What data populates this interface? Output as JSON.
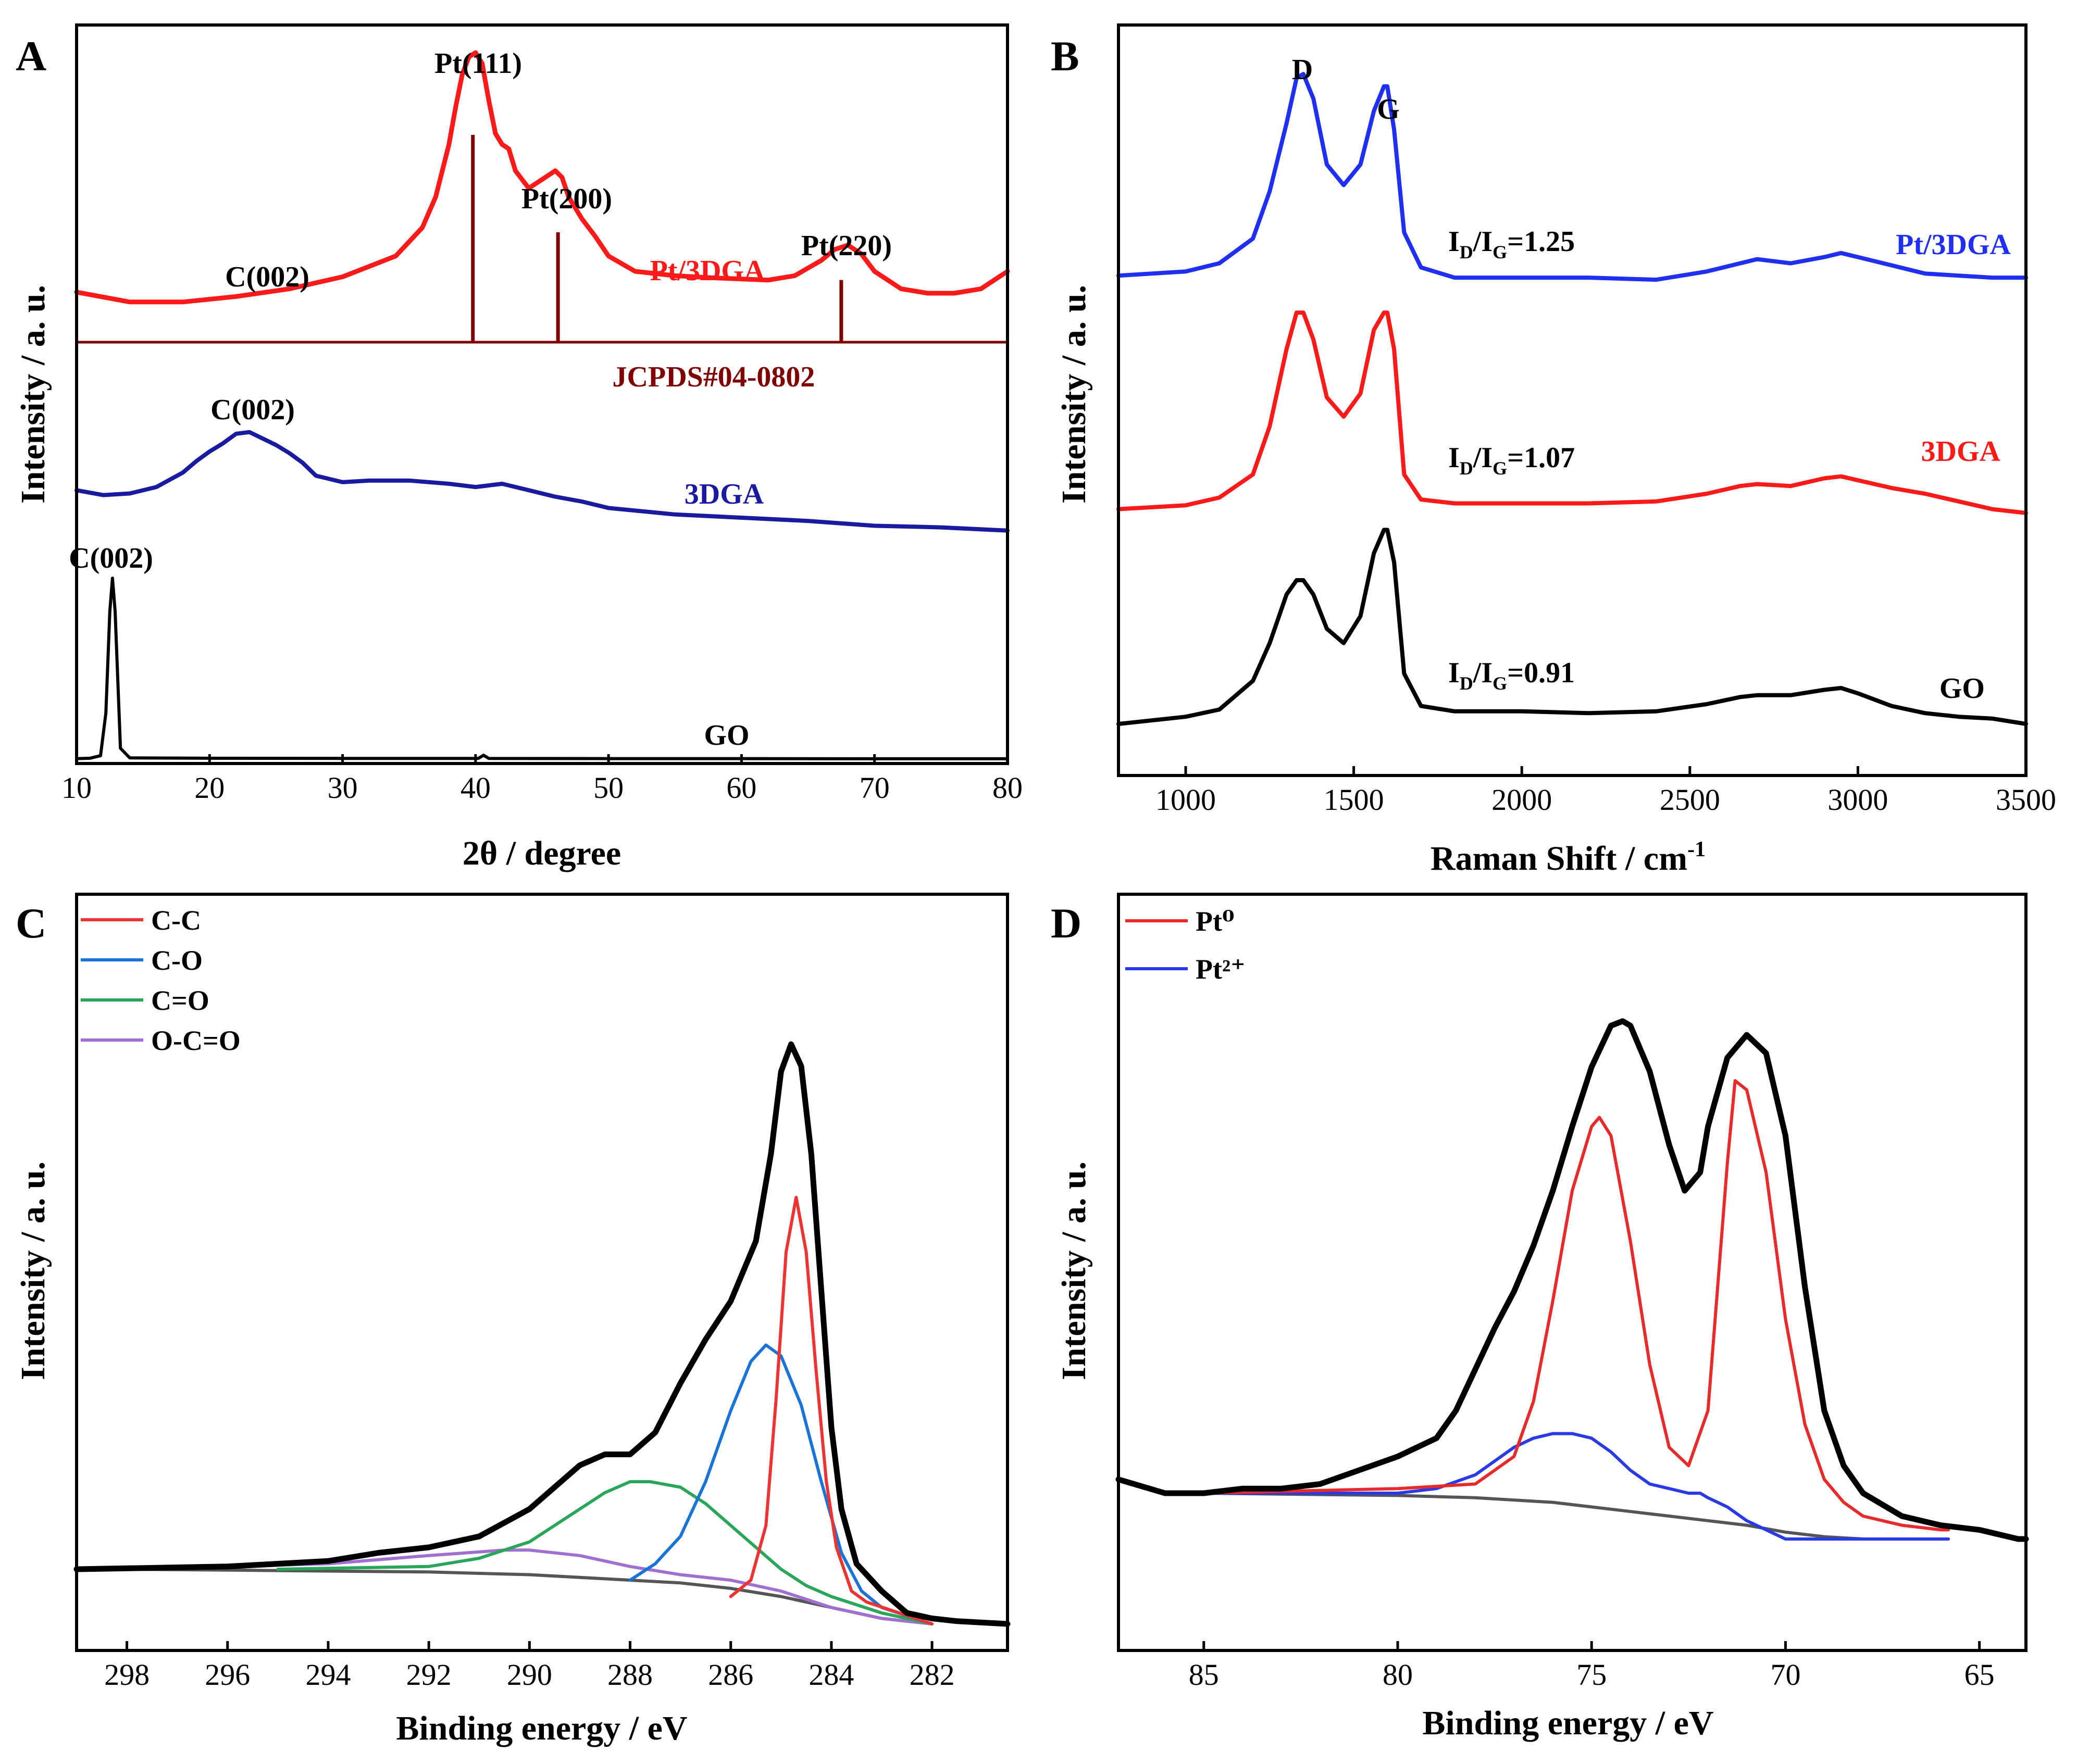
{
  "chart_data": [
    {
      "panel": "A",
      "type": "line",
      "xlabel": "2θ / degree",
      "ylabel": "Intensity / a. u.",
      "xlim": [
        10,
        80
      ],
      "xticks": [
        10,
        20,
        30,
        40,
        50,
        60,
        70,
        80
      ],
      "series": [
        {
          "name": "Pt/3DGA",
          "color": "#ff1a1a",
          "x": [
            10,
            14,
            18,
            22,
            26,
            30,
            34,
            36,
            37,
            38,
            38.5,
            39,
            39.5,
            40,
            40.5,
            41,
            41.5,
            42,
            42.5,
            43,
            44,
            45,
            46,
            46.5,
            47,
            48,
            49,
            50,
            52,
            55,
            58,
            62,
            64,
            66,
            67,
            68,
            69,
            70,
            72,
            74,
            76,
            78,
            80
          ],
          "y": [
            0.105,
            0.06,
            0.06,
            0.085,
            0.12,
            0.175,
            0.27,
            0.4,
            0.54,
            0.78,
            0.95,
            1.1,
            1.18,
            1.2,
            1.15,
            0.98,
            0.83,
            0.78,
            0.76,
            0.66,
            0.58,
            0.62,
            0.66,
            0.63,
            0.54,
            0.44,
            0.36,
            0.27,
            0.2,
            0.18,
            0.17,
            0.16,
            0.18,
            0.25,
            0.3,
            0.32,
            0.28,
            0.2,
            0.12,
            0.1,
            0.1,
            0.12,
            0.2
          ]
        },
        {
          "name": "3DGA",
          "color": "#1a1aa0",
          "x": [
            10,
            12,
            14,
            16,
            18,
            19,
            20,
            21,
            22,
            23,
            24,
            25,
            26,
            27,
            28,
            30,
            32,
            35,
            38,
            40,
            42,
            44,
            46,
            48,
            50,
            55,
            60,
            65,
            70,
            75,
            80
          ],
          "y": [
            0.27,
            0.24,
            0.25,
            0.29,
            0.38,
            0.45,
            0.51,
            0.56,
            0.62,
            0.63,
            0.59,
            0.55,
            0.5,
            0.44,
            0.36,
            0.32,
            0.33,
            0.33,
            0.31,
            0.29,
            0.31,
            0.27,
            0.23,
            0.2,
            0.16,
            0.12,
            0.1,
            0.08,
            0.05,
            0.04,
            0.02
          ]
        },
        {
          "name": "GO",
          "color": "#000000",
          "x": [
            10,
            11,
            11.8,
            12.2,
            12.5,
            12.7,
            12.9,
            13.3,
            14,
            20,
            30,
            40.2,
            40.6,
            41.0,
            50,
            60,
            70,
            80
          ],
          "y": [
            0.004,
            0.006,
            0.02,
            0.25,
            0.8,
            0.98,
            0.8,
            0.06,
            0.008,
            0.006,
            0.005,
            0.005,
            0.022,
            0.005,
            0.004,
            0.004,
            0.003,
            0.003
          ]
        }
      ],
      "reference": {
        "name": "JCPDS#04-0802",
        "color": "#800000",
        "x": [
          39.8,
          46.2,
          67.5
        ],
        "relative_intensity": [
          1.0,
          0.53,
          0.3
        ]
      },
      "annotations": [
        "Pt(111)",
        "Pt(200)",
        "Pt(220)",
        "C(002)",
        "C(002)",
        "C(002)",
        "Pt/3DGA",
        "3DGA",
        "GO",
        "JCPDS#04-0802"
      ]
    },
    {
      "panel": "B",
      "type": "line",
      "xlabel": "Raman Shift / cm",
      "xlabel_sup": "-1",
      "ylabel": "Intensity / a. u.",
      "xlim": [
        800,
        3500
      ],
      "xticks": [
        1000,
        1500,
        2000,
        2500,
        3000,
        3500
      ],
      "series": [
        {
          "name": "Pt/3DGA",
          "color": "#1f2ff5",
          "x": [
            800,
            1000,
            1100,
            1200,
            1250,
            1300,
            1330,
            1350,
            1380,
            1420,
            1470,
            1520,
            1560,
            1590,
            1600,
            1620,
            1650,
            1700,
            1800,
            2000,
            2200,
            2400,
            2550,
            2650,
            2700,
            2800,
            2900,
            2950,
            3000,
            3100,
            3200,
            3300,
            3400,
            3500
          ],
          "y": [
            0.04,
            0.06,
            0.1,
            0.22,
            0.45,
            0.78,
            1.0,
            1.02,
            0.9,
            0.58,
            0.48,
            0.58,
            0.84,
            0.96,
            0.96,
            0.75,
            0.25,
            0.08,
            0.03,
            0.03,
            0.03,
            0.02,
            0.06,
            0.1,
            0.12,
            0.1,
            0.13,
            0.15,
            0.13,
            0.09,
            0.05,
            0.04,
            0.03,
            0.03
          ]
        },
        {
          "name": "3DGA",
          "color": "#ff1a1a",
          "x": [
            800,
            1000,
            1100,
            1200,
            1250,
            1300,
            1330,
            1350,
            1380,
            1420,
            1470,
            1520,
            1560,
            1590,
            1600,
            1620,
            1650,
            1700,
            1800,
            2000,
            2200,
            2400,
            2550,
            2650,
            2700,
            2800,
            2900,
            2950,
            3000,
            3100,
            3200,
            3300,
            3400,
            3500
          ],
          "y": [
            0.02,
            0.04,
            0.08,
            0.2,
            0.45,
            0.85,
            1.04,
            1.04,
            0.9,
            0.6,
            0.5,
            0.62,
            0.95,
            1.04,
            1.04,
            0.85,
            0.2,
            0.07,
            0.05,
            0.05,
            0.05,
            0.06,
            0.1,
            0.14,
            0.15,
            0.14,
            0.18,
            0.19,
            0.17,
            0.13,
            0.1,
            0.06,
            0.02,
            0.0
          ]
        },
        {
          "name": "GO",
          "color": "#000000",
          "x": [
            800,
            1000,
            1100,
            1200,
            1250,
            1300,
            1330,
            1350,
            1380,
            1420,
            1470,
            1520,
            1560,
            1590,
            1600,
            1620,
            1650,
            1700,
            1800,
            2000,
            2200,
            2400,
            2550,
            2650,
            2700,
            2800,
            2900,
            2950,
            3000,
            3100,
            3200,
            3300,
            3400,
            3500
          ],
          "y": [
            0.0,
            0.04,
            0.08,
            0.24,
            0.45,
            0.72,
            0.8,
            0.8,
            0.72,
            0.53,
            0.45,
            0.6,
            0.95,
            1.08,
            1.08,
            0.9,
            0.28,
            0.1,
            0.07,
            0.07,
            0.06,
            0.07,
            0.11,
            0.15,
            0.16,
            0.16,
            0.19,
            0.2,
            0.17,
            0.1,
            0.06,
            0.04,
            0.03,
            0.0
          ]
        }
      ],
      "ratios": [
        {
          "sample": "Pt/3DGA",
          "ID_IG": "=1.25"
        },
        {
          "sample": "3DGA",
          "ID_IG": "=1.07"
        },
        {
          "sample": "GO",
          "ID_IG": "=0.91"
        }
      ],
      "annotations": [
        "D",
        "G",
        "Pt/3DGA",
        "3DGA",
        "GO"
      ]
    },
    {
      "panel": "C",
      "type": "line",
      "xlabel": "Binding energy / eV",
      "ylabel": "Intensity / a. u.",
      "xlim": [
        299,
        280.5
      ],
      "xticks": [
        298,
        296,
        294,
        292,
        290,
        288,
        286,
        284,
        282
      ],
      "series": [
        {
          "name": "Total",
          "color": "#000000",
          "x": [
            299,
            296,
            294,
            293,
            292,
            291,
            290,
            289,
            288.5,
            288,
            287.5,
            287,
            286.5,
            286,
            285.5,
            285.2,
            285,
            284.8,
            284.6,
            284.4,
            284.2,
            284,
            283.8,
            283.5,
            283,
            282.5,
            282,
            281.5,
            280.5
          ],
          "y": [
            0.04,
            0.045,
            0.055,
            0.07,
            0.08,
            0.1,
            0.15,
            0.23,
            0.25,
            0.25,
            0.29,
            0.38,
            0.46,
            0.53,
            0.64,
            0.8,
            0.95,
            1.0,
            0.96,
            0.8,
            0.55,
            0.3,
            0.15,
            0.05,
            0.0,
            -0.04,
            -0.05,
            -0.055,
            -0.06
          ]
        },
        {
          "name": "C-C",
          "color": "#ee3333",
          "x": [
            286,
            285.6,
            285.3,
            285.1,
            284.9,
            284.7,
            284.5,
            284.3,
            284.1,
            283.9,
            283.6,
            283.3,
            282
          ],
          "y": [
            -0.01,
            0.02,
            0.12,
            0.35,
            0.62,
            0.72,
            0.62,
            0.4,
            0.2,
            0.08,
            0.0,
            -0.02,
            -0.06
          ]
        },
        {
          "name": "C-O",
          "color": "#1a73d6",
          "x": [
            288,
            287.5,
            287,
            286.5,
            286,
            285.6,
            285.3,
            285,
            284.6,
            284.2,
            283.8,
            283.4,
            283,
            282
          ],
          "y": [
            0.02,
            0.05,
            0.1,
            0.2,
            0.33,
            0.42,
            0.45,
            0.43,
            0.34,
            0.2,
            0.07,
            0.0,
            -0.03,
            -0.06
          ]
        },
        {
          "name": "C=O",
          "color": "#2aa65a",
          "x": [
            295,
            292,
            291,
            290,
            289,
            288.5,
            288,
            287.6,
            287,
            286.5,
            286,
            285.5,
            285,
            284.5,
            284,
            283,
            282
          ],
          "y": [
            0.04,
            0.045,
            0.06,
            0.09,
            0.15,
            0.18,
            0.2,
            0.2,
            0.19,
            0.16,
            0.12,
            0.08,
            0.04,
            0.01,
            -0.01,
            -0.04,
            -0.06
          ]
        },
        {
          "name": "O-C=O",
          "color": "#a070d0",
          "x": [
            298,
            296,
            294,
            292,
            290.5,
            290,
            289,
            288,
            287,
            286,
            285,
            284,
            283,
            282
          ],
          "y": [
            0.04,
            0.045,
            0.05,
            0.065,
            0.075,
            0.075,
            0.065,
            0.045,
            0.03,
            0.02,
            0.0,
            -0.03,
            -0.05,
            -0.06
          ]
        },
        {
          "name": "Background",
          "color": "#555555",
          "x": [
            298,
            292,
            290,
            288,
            287,
            286,
            285,
            284,
            283,
            282
          ],
          "y": [
            0.04,
            0.035,
            0.03,
            0.02,
            0.015,
            0.005,
            -0.01,
            -0.03,
            -0.05,
            -0.06
          ]
        }
      ],
      "legend": [
        "C-C",
        "C-O",
        "C=O",
        "O-C=O"
      ]
    },
    {
      "panel": "D",
      "type": "line",
      "xlabel": "Binding energy / eV",
      "ylabel": "Intensity / a. u.",
      "xlim": [
        87.2,
        63.8
      ],
      "xticks": [
        85,
        80,
        75,
        70,
        65
      ],
      "series": [
        {
          "name": "Total",
          "color": "#000000",
          "x": [
            87.2,
            86,
            85,
            84,
            83,
            82,
            81,
            80,
            79,
            78.5,
            78,
            77.5,
            77,
            76.5,
            76,
            75.5,
            75,
            74.5,
            74.2,
            74,
            73.5,
            73,
            72.6,
            72.2,
            72,
            71.5,
            71,
            70.5,
            70,
            69.5,
            69,
            68.5,
            68,
            67,
            66,
            65,
            64,
            63.8
          ],
          "y": [
            0.03,
            0.0,
            0.0,
            0.01,
            0.01,
            0.02,
            0.05,
            0.08,
            0.12,
            0.18,
            0.27,
            0.36,
            0.44,
            0.54,
            0.66,
            0.8,
            0.93,
            1.02,
            1.03,
            1.02,
            0.92,
            0.76,
            0.66,
            0.7,
            0.8,
            0.95,
            1.0,
            0.96,
            0.78,
            0.45,
            0.18,
            0.06,
            0.0,
            -0.05,
            -0.07,
            -0.08,
            -0.1,
            -0.1
          ]
        },
        {
          "name": "Pt⁰",
          "color": "#e82a2a",
          "x": [
            85,
            80,
            78,
            77,
            76.5,
            76,
            75.5,
            75,
            74.8,
            74.5,
            74,
            73.5,
            73,
            72.5,
            72,
            71.5,
            71.3,
            71,
            70.5,
            70,
            69.5,
            69,
            68.5,
            68,
            67,
            66,
            65.8
          ],
          "y": [
            0.0,
            0.01,
            0.02,
            0.08,
            0.2,
            0.42,
            0.66,
            0.8,
            0.82,
            0.78,
            0.55,
            0.28,
            0.1,
            0.06,
            0.18,
            0.72,
            0.9,
            0.88,
            0.7,
            0.38,
            0.15,
            0.03,
            -0.02,
            -0.05,
            -0.07,
            -0.08,
            -0.08
          ]
        },
        {
          "name": "Pt²⁺",
          "color": "#2a3ae8",
          "x": [
            85,
            80,
            79,
            78,
            77,
            76.5,
            76,
            75.5,
            75,
            74.5,
            74,
            73.5,
            73,
            72.5,
            72.2,
            72,
            71.5,
            71,
            70.5,
            70,
            69.5,
            69,
            68,
            67,
            66,
            65.8
          ],
          "y": [
            0.0,
            0.0,
            0.01,
            0.04,
            0.1,
            0.12,
            0.13,
            0.13,
            0.12,
            0.09,
            0.05,
            0.02,
            0.01,
            0.0,
            0.0,
            -0.01,
            -0.03,
            -0.06,
            -0.08,
            -0.1,
            -0.1,
            -0.1,
            -0.1,
            -0.1,
            -0.1,
            -0.1
          ]
        },
        {
          "name": "Background",
          "color": "#555555",
          "x": [
            85,
            80,
            78,
            76,
            75,
            74,
            73,
            72,
            71,
            70,
            69,
            68,
            66,
            65.8
          ],
          "y": [
            0.0,
            -0.005,
            -0.01,
            -0.02,
            -0.03,
            -0.04,
            -0.05,
            -0.06,
            -0.07,
            -0.085,
            -0.095,
            -0.1,
            -0.1,
            -0.1
          ]
        }
      ],
      "legend": [
        "Pt⁰",
        "Pt²⁺"
      ]
    }
  ]
}
